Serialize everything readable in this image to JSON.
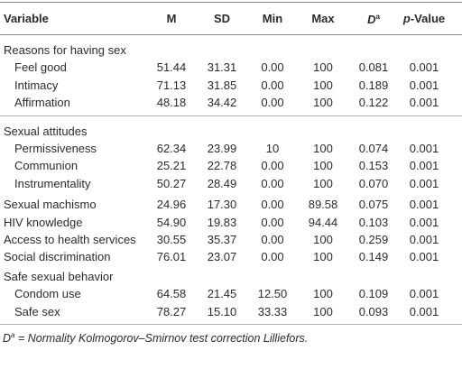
{
  "table": {
    "header": [
      {
        "text": "Variable"
      },
      {
        "text": "M"
      },
      {
        "text": "SD"
      },
      {
        "text": "Min"
      },
      {
        "text": "Max"
      },
      {
        "italic": "D",
        "sup": "a"
      },
      {
        "italic": "p",
        "text": "-Value"
      }
    ],
    "sections": [
      {
        "label": "Reasons for having sex",
        "rows": [
          {
            "label": "Feel good",
            "cells": [
              "51.44",
              "31.31",
              "0.00",
              "100",
              "0.081",
              "0.001"
            ]
          },
          {
            "label": "Intimacy",
            "cells": [
              "71.13",
              "31.85",
              "0.00",
              "100",
              "0.189",
              "0.001"
            ]
          },
          {
            "label": "Affirmation",
            "cells": [
              "48.18",
              "34.42",
              "0.00",
              "100",
              "0.122",
              "0.001"
            ]
          }
        ]
      },
      {
        "label": "Sexual attitudes",
        "rows": [
          {
            "label": "Permissiveness",
            "cells": [
              "62.34",
              "23.99",
              "10",
              "100",
              "0.074",
              "0.001"
            ]
          },
          {
            "label": "Communion",
            "cells": [
              "25.21",
              "22.78",
              "0.00",
              "100",
              "0.153",
              "0.001"
            ]
          },
          {
            "label": "Instrumentality",
            "cells": [
              "50.27",
              "28.49",
              "0.00",
              "100",
              "0.070",
              "0.001"
            ]
          }
        ]
      },
      {
        "label": "Sexual machismo",
        "cells": [
          "24.96",
          "17.30",
          "0.00",
          "89.58",
          "0.075",
          "0.001"
        ]
      },
      {
        "label": "HIV knowledge",
        "cells": [
          "54.90",
          "19.83",
          "0.00",
          "94.44",
          "0.103",
          "0.001"
        ]
      },
      {
        "label": "Access to health services",
        "cells": [
          "30.55",
          "35.37",
          "0.00",
          "100",
          "0.259",
          "0.001"
        ]
      },
      {
        "label": "Social discrimination",
        "cells": [
          "76.01",
          "23.07",
          "0.00",
          "100",
          "0.149",
          "0.001"
        ]
      },
      {
        "label": "Safe sexual behavior",
        "rows": [
          {
            "label": "Condom use",
            "cells": [
              "64.58",
              "21.45",
              "12.50",
              "100",
              "0.109",
              "0.001"
            ]
          },
          {
            "label": "Safe sex",
            "cells": [
              "78.27",
              "15.10",
              "33.33",
              "100",
              "0.093",
              "0.001"
            ]
          }
        ]
      }
    ]
  },
  "footnote": {
    "symbol": "D",
    "sup": "a",
    "text": " = Normality Kolmogorov–Smirnov test correction Lilliefors."
  }
}
